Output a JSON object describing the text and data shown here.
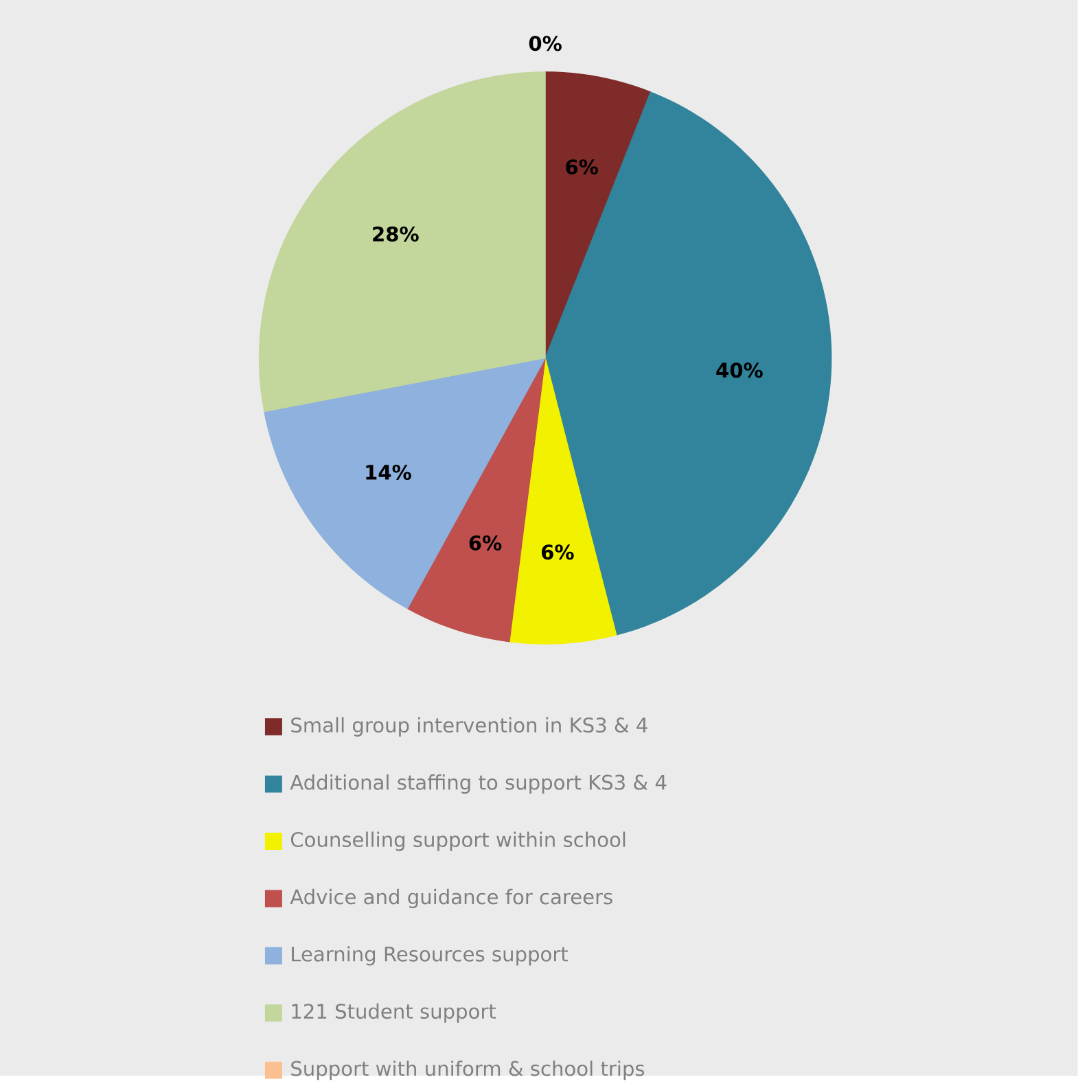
{
  "chart_data": {
    "type": "pie",
    "categories": [
      "Small group intervention in KS3 & 4",
      "Additional staffing to support KS3 & 4",
      "Counselling support within school",
      "Advice and guidance for careers",
      "Learning Resources support",
      "121 Student support",
      "Support with uniform & school trips"
    ],
    "values": [
      6,
      40,
      6,
      6,
      14,
      28,
      0
    ],
    "value_labels": [
      "6%",
      "40%",
      "6%",
      "6%",
      "14%",
      "28%",
      "0%"
    ],
    "colors": [
      "#7e2b29",
      "#31849b",
      "#f2f200",
      "#c0504d",
      "#8eb1de",
      "#c3d69b",
      "#fac090"
    ],
    "legend": "bottom"
  }
}
